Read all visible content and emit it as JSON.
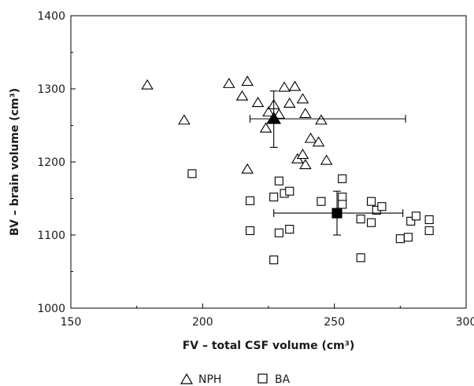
{
  "chart_data": {
    "type": "scatter",
    "xlabel": "FV – total CSF volume (cm³)",
    "ylabel": "BV – brain volume (cm³)",
    "xlim": [
      150,
      300
    ],
    "ylim": [
      1000,
      1400
    ],
    "xticks": [
      150,
      200,
      250,
      300
    ],
    "yticks": [
      1000,
      1100,
      1200,
      1300,
      1400
    ],
    "x_tick_labels": [
      "150",
      "200",
      "250",
      "300"
    ],
    "y_tick_labels": [
      "1000",
      "1100",
      "1200",
      "1300",
      "1400"
    ],
    "grid": false,
    "legend_position": "bottom-center",
    "series": [
      {
        "name": "NPH",
        "marker": "triangle-open",
        "color": "#000000",
        "points": [
          [
            179,
            1305
          ],
          [
            193,
            1257
          ],
          [
            210,
            1307
          ],
          [
            215,
            1290
          ],
          [
            217,
            1310
          ],
          [
            217,
            1190
          ],
          [
            221,
            1281
          ],
          [
            224,
            1246
          ],
          [
            225,
            1268
          ],
          [
            227,
            1278
          ],
          [
            229,
            1265
          ],
          [
            231,
            1302
          ],
          [
            233,
            1280
          ],
          [
            235,
            1303
          ],
          [
            236,
            1204
          ],
          [
            238,
            1210
          ],
          [
            238,
            1286
          ],
          [
            239,
            1266
          ],
          [
            239,
            1196
          ],
          [
            241,
            1232
          ],
          [
            244,
            1227
          ],
          [
            245,
            1257
          ],
          [
            247,
            1202
          ]
        ],
        "mean": {
          "x": 227,
          "y": 1259,
          "x_err": [
            218,
            277
          ],
          "y_err": [
            1220,
            1297
          ]
        }
      },
      {
        "name": "BA",
        "marker": "square-open",
        "color": "#000000",
        "points": [
          [
            196,
            1184
          ],
          [
            218,
            1147
          ],
          [
            218,
            1106
          ],
          [
            227,
            1066
          ],
          [
            227,
            1152
          ],
          [
            229,
            1174
          ],
          [
            229,
            1103
          ],
          [
            231,
            1157
          ],
          [
            233,
            1160
          ],
          [
            233,
            1108
          ],
          [
            245,
            1146
          ],
          [
            253,
            1177
          ],
          [
            253,
            1152
          ],
          [
            253,
            1142
          ],
          [
            260,
            1122
          ],
          [
            260,
            1069
          ],
          [
            264,
            1146
          ],
          [
            264,
            1117
          ],
          [
            266,
            1134
          ],
          [
            268,
            1139
          ],
          [
            275,
            1095
          ],
          [
            278,
            1097
          ],
          [
            279,
            1119
          ],
          [
            281,
            1126
          ],
          [
            286,
            1121
          ],
          [
            286,
            1106
          ]
        ],
        "mean": {
          "x": 251,
          "y": 1130,
          "x_err": [
            227,
            276
          ],
          "y_err": [
            1100,
            1160
          ]
        }
      }
    ]
  }
}
